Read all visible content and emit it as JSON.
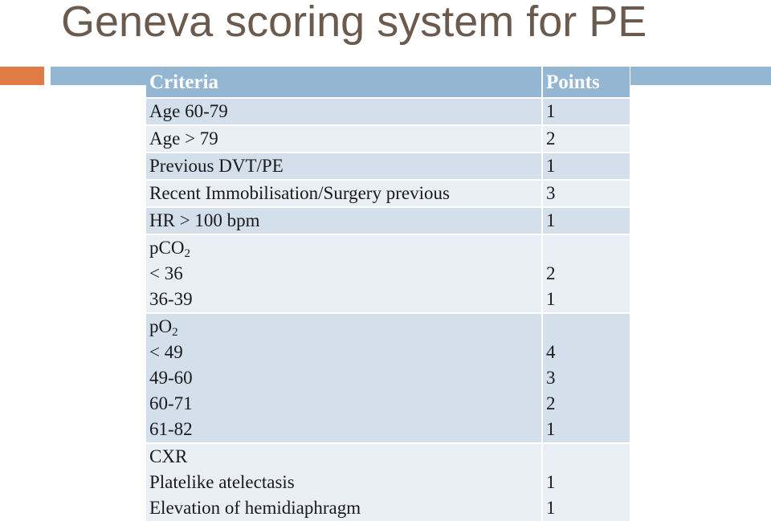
{
  "title": "Geneva scoring system for PE",
  "colors": {
    "title": "#6b5a4e",
    "accent": "#e07b45",
    "header": "#93b6d3",
    "row_dark": "#d3dfeb",
    "row_light": "#eaeff5"
  },
  "table": {
    "header": {
      "criteria": "Criteria",
      "points": "Points"
    },
    "rows": [
      {
        "criteria": "Age 60-79",
        "points": "1"
      },
      {
        "criteria": "Age > 79",
        "points": "2"
      },
      {
        "criteria": "Previous DVT/PE",
        "points": "1"
      },
      {
        "criteria": "Recent Immobilisation/Surgery previous",
        "points": "3"
      },
      {
        "criteria": "HR > 100 bpm",
        "points": "1"
      }
    ],
    "pco2": {
      "label": "pCO",
      "sub": "2",
      "items": [
        {
          "criteria": "< 36",
          "points": "2"
        },
        {
          "criteria": "36-39",
          "points": "1"
        }
      ]
    },
    "po2": {
      "label": "pO",
      "sub": "2",
      "items": [
        {
          "criteria": "< 49",
          "points": "4"
        },
        {
          "criteria": "49-60",
          "points": "3"
        },
        {
          "criteria": "60-71",
          "points": "2"
        },
        {
          "criteria": "61-82",
          "points": "1"
        }
      ]
    },
    "cxr": {
      "label": "CXR",
      "items": [
        {
          "criteria": "Platelike atelectasis",
          "points": "1"
        },
        {
          "criteria": "Elevation of hemidiaphragm",
          "points": "1"
        }
      ]
    }
  }
}
